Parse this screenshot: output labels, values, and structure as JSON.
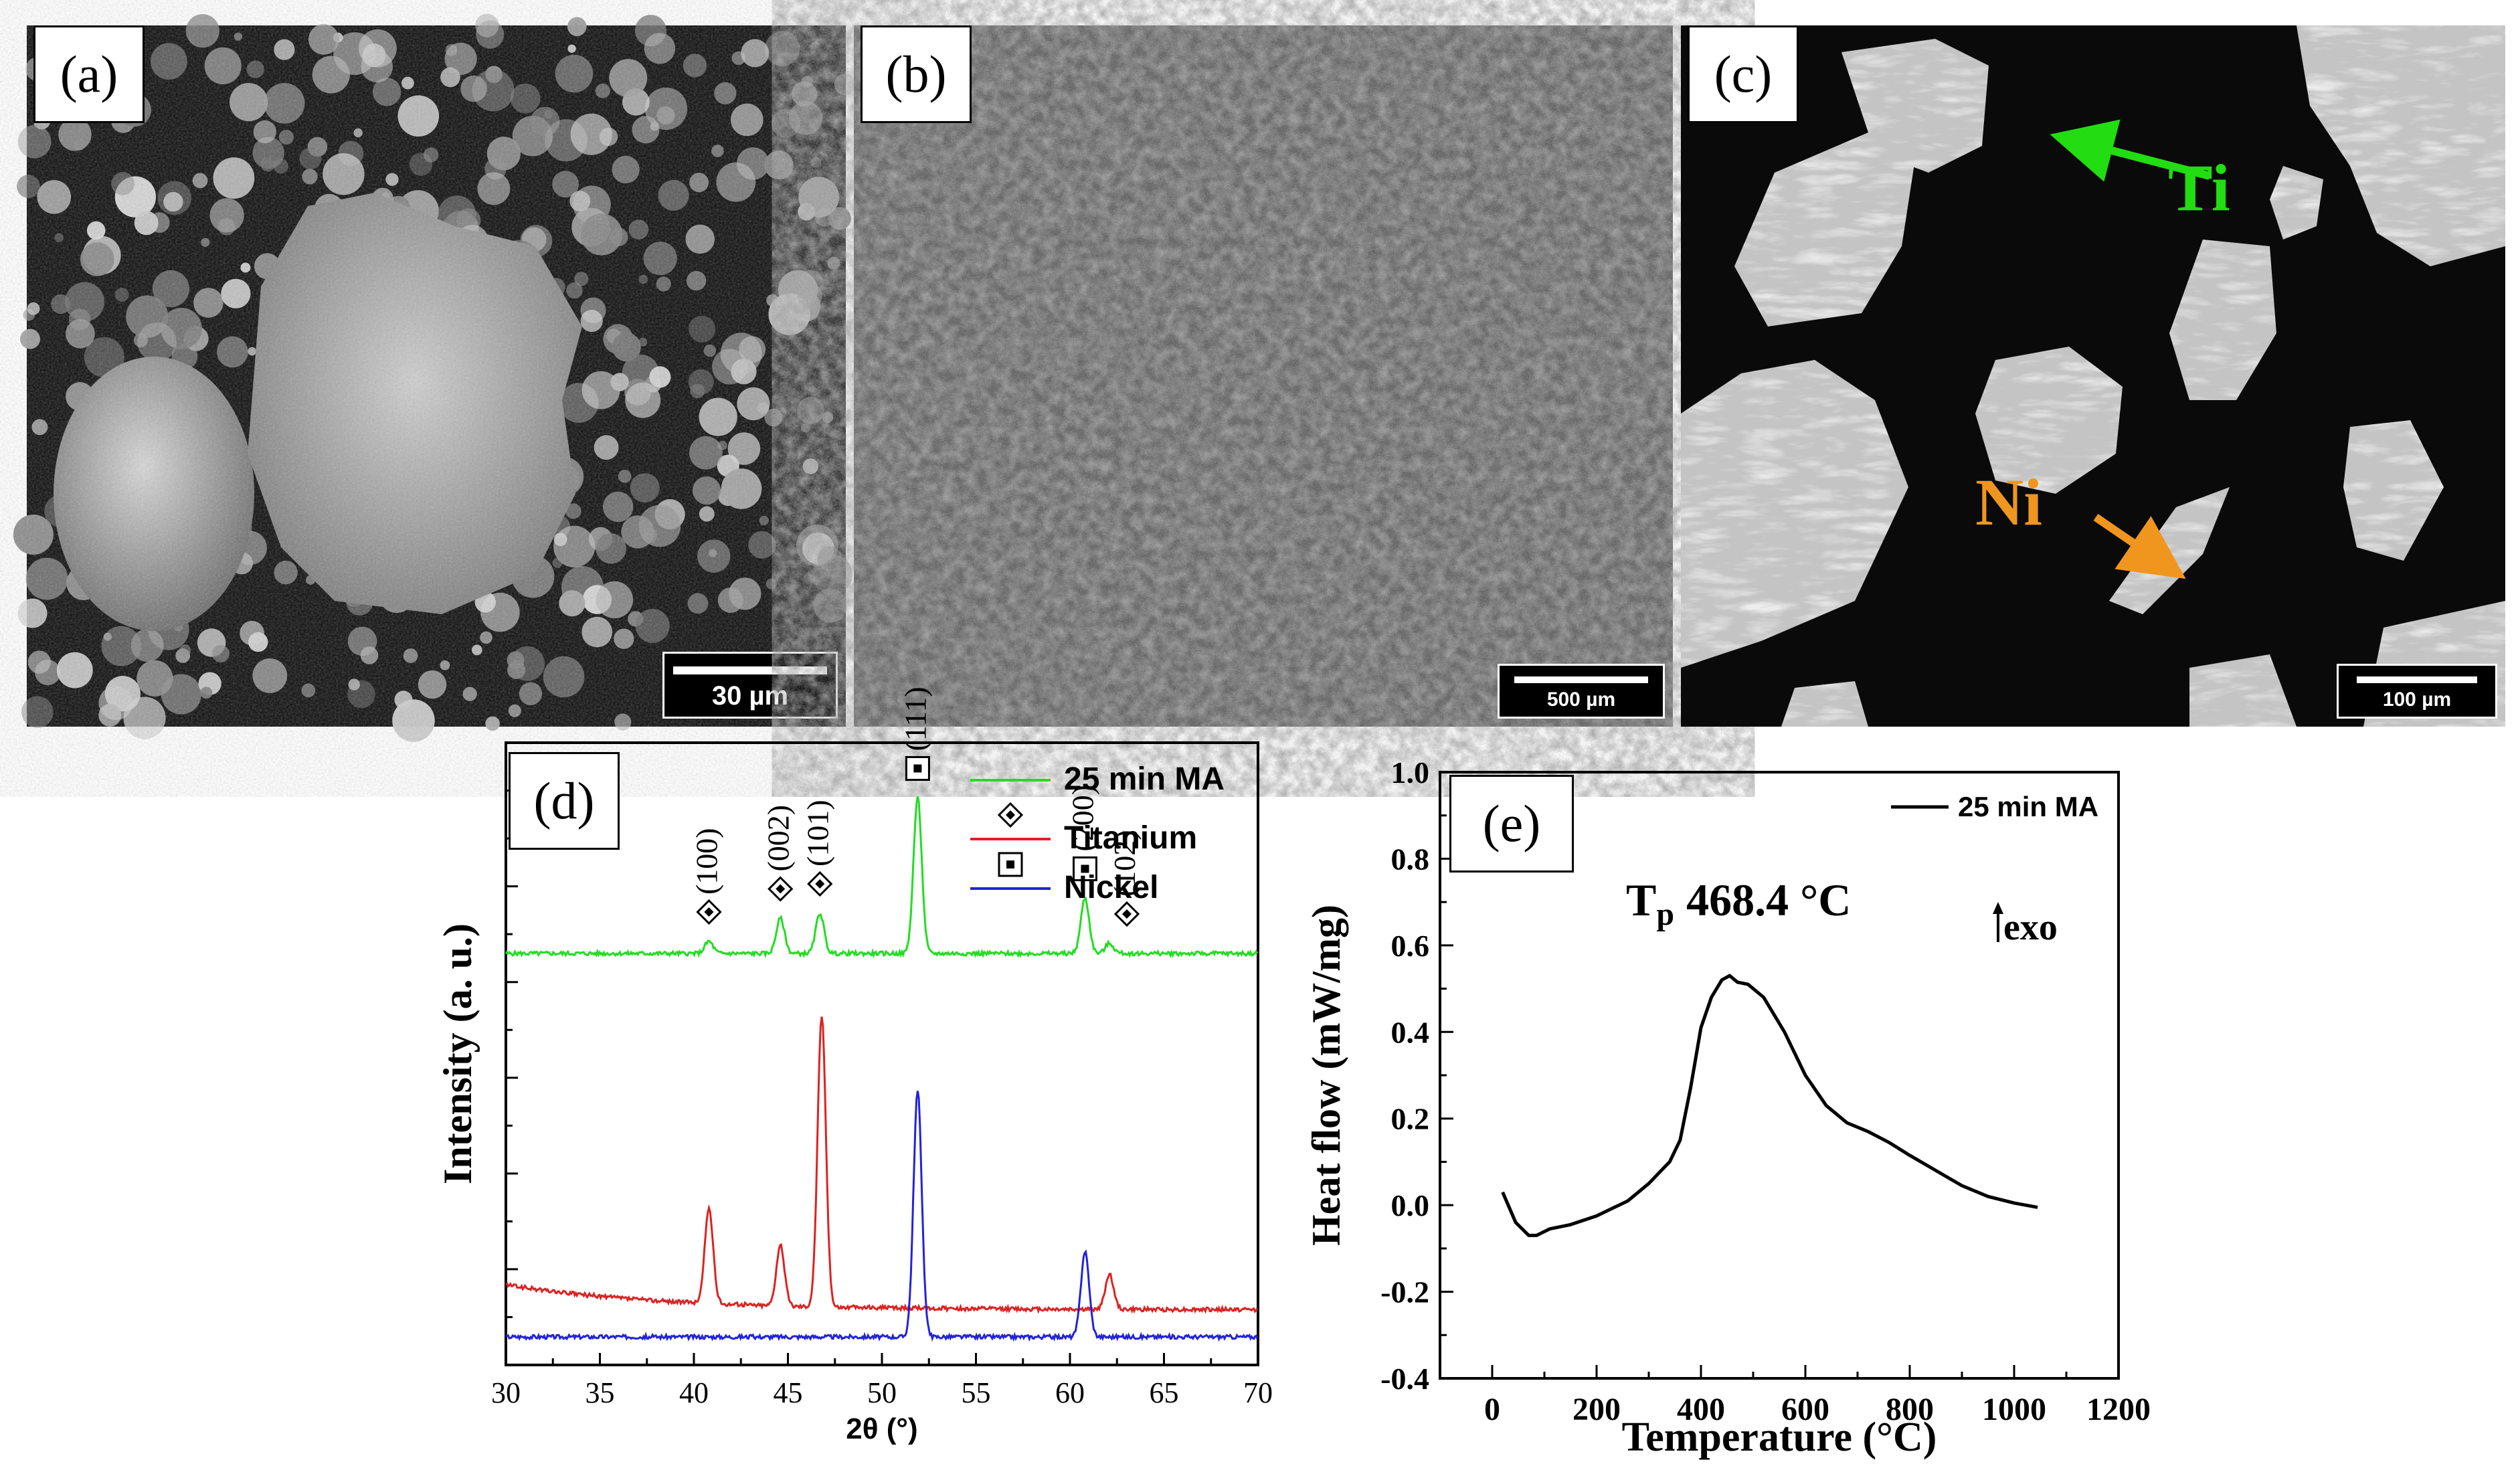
{
  "panels": {
    "a": {
      "label": "(a)",
      "scale": "30 µm"
    },
    "b": {
      "label": "(b)",
      "scale": "500 µm"
    },
    "c": {
      "label": "(c)",
      "scale": "100 µm",
      "arrow_ti": "Ti",
      "arrow_ni": "Ni",
      "ti_color": "#22dd11",
      "ni_color": "#f0961e"
    },
    "d": {
      "label": "(d)"
    },
    "e": {
      "label": "(e)"
    }
  },
  "chart_data": [
    {
      "type": "line",
      "panel": "d",
      "xlabel": "2θ (°)",
      "ylabel": "Intensity (a. u.)",
      "xlim": [
        30,
        70
      ],
      "xticks": [
        30,
        35,
        40,
        45,
        50,
        55,
        60,
        65,
        70
      ],
      "legend": [
        {
          "name": "25 min MA",
          "color": "#22dd22",
          "kind": "line"
        },
        {
          "name": "Titanium",
          "color": "#dd2222",
          "kind": "diamond",
          "line_color": "#dd2222"
        },
        {
          "name": "Nickel",
          "color": "#2222dd",
          "kind": "square",
          "line_color": "#2222dd"
        }
      ],
      "series": [
        {
          "name": "25 min MA",
          "color": "#22dd22",
          "baseline": 4.1,
          "peaks": [
            [
              40.8,
              0.12
            ],
            [
              44.6,
              0.35
            ],
            [
              46.7,
              0.4
            ],
            [
              51.9,
              1.55
            ],
            [
              60.8,
              0.55
            ],
            [
              62.1,
              0.1
            ]
          ]
        },
        {
          "name": "Titanium",
          "color": "#dd2222",
          "baseline": 0.55,
          "decay": 0.25,
          "peaks": [
            [
              40.8,
              0.95
            ],
            [
              44.6,
              0.6
            ],
            [
              46.8,
              2.9
            ],
            [
              62.1,
              0.35
            ]
          ]
        },
        {
          "name": "Nickel",
          "color": "#2222dd",
          "baseline": 0.28,
          "peaks": [
            [
              51.9,
              2.45
            ],
            [
              60.8,
              0.85
            ]
          ]
        }
      ],
      "peak_labels": [
        {
          "text": "(100)",
          "x": 40.8,
          "marker": "diamond"
        },
        {
          "text": "(002)",
          "x": 44.6,
          "marker": "diamond"
        },
        {
          "text": "(101)",
          "x": 46.7,
          "marker": "diamond"
        },
        {
          "text": "(111)",
          "x": 51.9,
          "marker": "square"
        },
        {
          "text": "(200)",
          "x": 60.8,
          "marker": "square"
        },
        {
          "text": "(102)",
          "x": 62.1,
          "marker": "diamond"
        }
      ]
    },
    {
      "type": "line",
      "panel": "e",
      "xlabel": "Temperature (°C)",
      "ylabel": "Heat flow (mW/mg)",
      "xlim": [
        -100,
        1200
      ],
      "ylim": [
        -0.4,
        1.0
      ],
      "xticks": [
        0,
        200,
        400,
        600,
        800,
        1000,
        1200
      ],
      "yticks": [
        "-0.4",
        "-0.2",
        "0.0",
        "0.2",
        "0.4",
        "0.6",
        "0.8",
        "1.0"
      ],
      "legend": [
        {
          "name": "25 min MA",
          "color": "#000000"
        }
      ],
      "annotation_tp": "468.4 °C",
      "annotation_tp_symbol": "T",
      "annotation_tp_sub": "p",
      "annotation_exo": "exo",
      "series": [
        {
          "name": "25 min MA",
          "x": [
            20,
            45,
            70,
            85,
            110,
            150,
            200,
            260,
            300,
            340,
            360,
            380,
            400,
            420,
            440,
            455,
            470,
            490,
            520,
            560,
            600,
            640,
            680,
            720,
            760,
            800,
            850,
            900,
            950,
            1000,
            1045
          ],
          "y": [
            0.03,
            -0.04,
            -0.07,
            -0.07,
            -0.055,
            -0.045,
            -0.025,
            0.01,
            0.05,
            0.1,
            0.15,
            0.27,
            0.41,
            0.48,
            0.52,
            0.53,
            0.515,
            0.51,
            0.48,
            0.4,
            0.3,
            0.23,
            0.19,
            0.17,
            0.145,
            0.115,
            0.08,
            0.045,
            0.02,
            0.005,
            -0.005
          ]
        }
      ]
    }
  ]
}
